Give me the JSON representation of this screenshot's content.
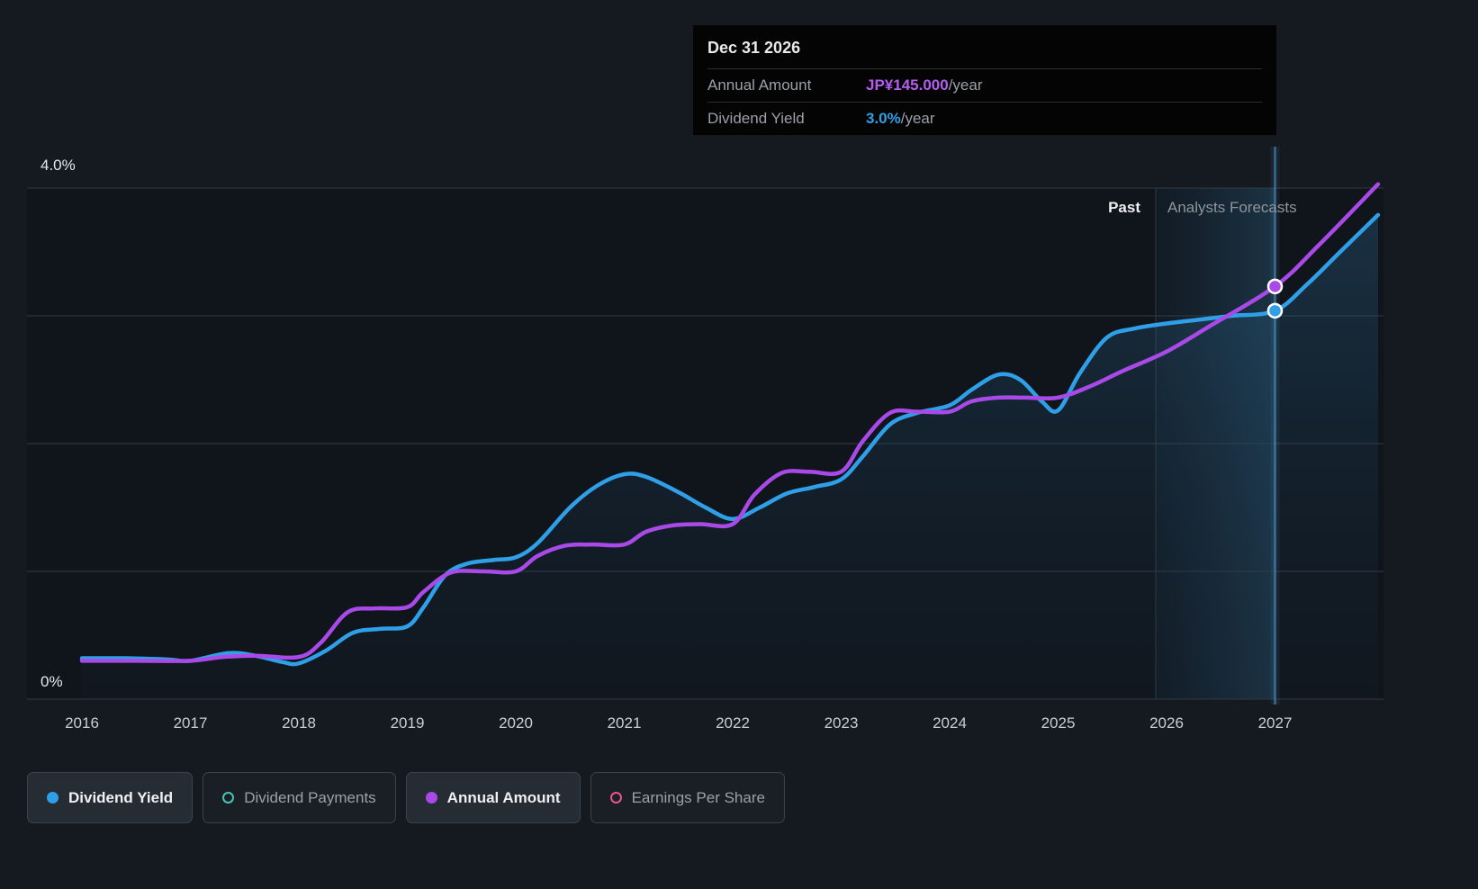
{
  "tooltip": {
    "date": "Dec 31 2026",
    "rows": [
      {
        "label": "Annual Amount",
        "value": "JP¥145.000",
        "suffix": "/year",
        "value_color": "#b45ef0"
      },
      {
        "label": "Dividend Yield",
        "value": "3.0%",
        "suffix": "/year",
        "value_color": "#2fa0e8"
      }
    ]
  },
  "labels": {
    "past": "Past",
    "forecast": "Analysts Forecasts"
  },
  "legend": {
    "items": [
      {
        "label": "Dividend Yield",
        "color": "#2f9fe8",
        "filled": true
      },
      {
        "label": "Dividend Payments",
        "color": "#45c4b5",
        "filled": false
      },
      {
        "label": "Annual Amount",
        "color": "#a94ae8",
        "filled": true
      },
      {
        "label": "Earnings Per Share",
        "color": "#e8558e",
        "filled": false
      }
    ]
  },
  "chart_data": {
    "type": "line",
    "title": "Dividend yield and annual amount, past and analysts forecasts",
    "x_ticks": [
      "2016",
      "2017",
      "2018",
      "2019",
      "2020",
      "2021",
      "2022",
      "2023",
      "2024",
      "2025",
      "2026",
      "2027"
    ],
    "x_range": [
      2016,
      2028
    ],
    "y_axis": {
      "min": 0,
      "max": 4.0,
      "step": 1.0,
      "top_label": "4.0%",
      "bottom_label": "0%",
      "unit": "%"
    },
    "grid": true,
    "legend_position": "bottom",
    "past_end_year": 2025.9,
    "hover_year": 2027,
    "series": [
      {
        "name": "Dividend Yield",
        "color": "#2f9fe8",
        "fill": true,
        "points": [
          [
            2016.0,
            0.32
          ],
          [
            2016.4,
            0.32
          ],
          [
            2016.8,
            0.31
          ],
          [
            2017.0,
            0.3
          ],
          [
            2017.35,
            0.36
          ],
          [
            2017.6,
            0.34
          ],
          [
            2017.85,
            0.29
          ],
          [
            2018.0,
            0.28
          ],
          [
            2018.25,
            0.38
          ],
          [
            2018.5,
            0.52
          ],
          [
            2018.75,
            0.55
          ],
          [
            2019.0,
            0.57
          ],
          [
            2019.15,
            0.72
          ],
          [
            2019.35,
            0.97
          ],
          [
            2019.55,
            1.06
          ],
          [
            2019.8,
            1.09
          ],
          [
            2020.0,
            1.11
          ],
          [
            2020.2,
            1.22
          ],
          [
            2020.5,
            1.5
          ],
          [
            2020.75,
            1.67
          ],
          [
            2021.0,
            1.76
          ],
          [
            2021.2,
            1.74
          ],
          [
            2021.5,
            1.62
          ],
          [
            2021.75,
            1.5
          ],
          [
            2022.0,
            1.41
          ],
          [
            2022.25,
            1.5
          ],
          [
            2022.5,
            1.61
          ],
          [
            2022.75,
            1.66
          ],
          [
            2023.0,
            1.72
          ],
          [
            2023.2,
            1.9
          ],
          [
            2023.45,
            2.15
          ],
          [
            2023.7,
            2.24
          ],
          [
            2024.0,
            2.3
          ],
          [
            2024.2,
            2.42
          ],
          [
            2024.45,
            2.54
          ],
          [
            2024.65,
            2.5
          ],
          [
            2024.85,
            2.33
          ],
          [
            2025.0,
            2.26
          ],
          [
            2025.2,
            2.55
          ],
          [
            2025.45,
            2.83
          ],
          [
            2025.7,
            2.9
          ],
          [
            2026.0,
            2.94
          ],
          [
            2026.3,
            2.97
          ],
          [
            2026.6,
            3.0
          ],
          [
            2027.0,
            3.04
          ],
          [
            2027.3,
            3.25
          ],
          [
            2027.6,
            3.5
          ],
          [
            2027.95,
            3.79
          ]
        ]
      },
      {
        "name": "Annual Amount",
        "color": "#a94ae8",
        "fill": false,
        "points": [
          [
            2016.0,
            0.3
          ],
          [
            2016.5,
            0.3
          ],
          [
            2017.0,
            0.3
          ],
          [
            2017.3,
            0.33
          ],
          [
            2017.6,
            0.34
          ],
          [
            2018.0,
            0.33
          ],
          [
            2018.2,
            0.44
          ],
          [
            2018.45,
            0.68
          ],
          [
            2018.7,
            0.71
          ],
          [
            2019.0,
            0.72
          ],
          [
            2019.15,
            0.84
          ],
          [
            2019.4,
            0.99
          ],
          [
            2019.7,
            1.0
          ],
          [
            2020.0,
            1.0
          ],
          [
            2020.2,
            1.12
          ],
          [
            2020.45,
            1.2
          ],
          [
            2020.7,
            1.21
          ],
          [
            2021.0,
            1.21
          ],
          [
            2021.2,
            1.31
          ],
          [
            2021.45,
            1.36
          ],
          [
            2021.7,
            1.37
          ],
          [
            2022.0,
            1.37
          ],
          [
            2022.2,
            1.6
          ],
          [
            2022.45,
            1.77
          ],
          [
            2022.7,
            1.78
          ],
          [
            2023.0,
            1.78
          ],
          [
            2023.2,
            2.02
          ],
          [
            2023.45,
            2.24
          ],
          [
            2023.7,
            2.25
          ],
          [
            2024.0,
            2.25
          ],
          [
            2024.2,
            2.33
          ],
          [
            2024.45,
            2.36
          ],
          [
            2024.7,
            2.36
          ],
          [
            2025.0,
            2.36
          ],
          [
            2025.3,
            2.45
          ],
          [
            2025.6,
            2.57
          ],
          [
            2026.0,
            2.72
          ],
          [
            2026.4,
            2.92
          ],
          [
            2027.0,
            3.23
          ],
          [
            2027.4,
            3.55
          ],
          [
            2027.95,
            4.03
          ]
        ]
      }
    ],
    "markers": [
      {
        "year": 2027,
        "value": 3.04,
        "color": "#2f9fe8"
      },
      {
        "year": 2027,
        "value": 3.23,
        "color": "#a94ae8"
      }
    ]
  }
}
